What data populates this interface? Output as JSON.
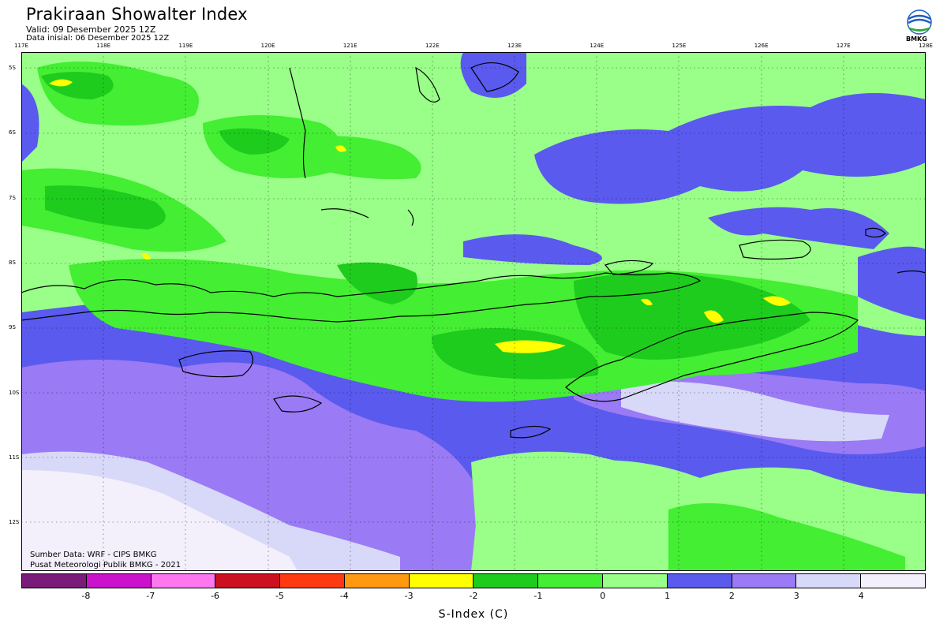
{
  "header": {
    "title": "Prakiraan Showalter Index",
    "valid": "Valid: 09 Desember 2025 12Z",
    "init": "Data inisial: 06 Desember 2025 12Z",
    "logo_text": "BMKG"
  },
  "map": {
    "lon_labels": [
      "117E",
      "118E",
      "119E",
      "120E",
      "121E",
      "122E",
      "123E",
      "124E",
      "125E",
      "126E",
      "127E",
      "128E"
    ],
    "lat_labels": [
      "5S",
      "6S",
      "7S",
      "8S",
      "9S",
      "10S",
      "11S",
      "12S"
    ],
    "footer_line1": "Sumber Data: WRF - CIPS BMKG",
    "footer_line2": "Pusat Meteorologi Publik BMKG - 2021"
  },
  "legend": {
    "title": "S-Index (C)",
    "tick_labels": [
      "-8",
      "-7",
      "-6",
      "-5",
      "-4",
      "-3",
      "-2",
      "-1",
      "0",
      "1",
      "2",
      "3",
      "4"
    ],
    "colors": [
      "#7a1a7a",
      "#cc11cc",
      "#ff77ee",
      "#cc1020",
      "#ff3a10",
      "#ff9a10",
      "#ffff00",
      "#1ecc1e",
      "#44ee33",
      "#99ff88",
      "#5a5aee",
      "#9a7af5",
      "#d8d8f8",
      "#f3f0fc"
    ]
  }
}
